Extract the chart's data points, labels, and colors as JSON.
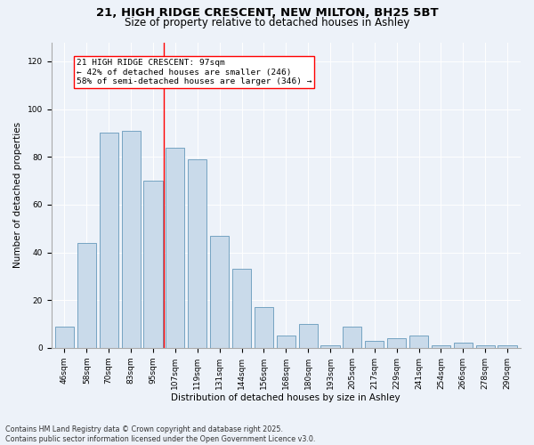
{
  "title1": "21, HIGH RIDGE CRESCENT, NEW MILTON, BH25 5BT",
  "title2": "Size of property relative to detached houses in Ashley",
  "xlabel": "Distribution of detached houses by size in Ashley",
  "ylabel": "Number of detached properties",
  "bar_labels": [
    "46sqm",
    "58sqm",
    "70sqm",
    "83sqm",
    "95sqm",
    "107sqm",
    "119sqm",
    "131sqm",
    "144sqm",
    "156sqm",
    "168sqm",
    "180sqm",
    "193sqm",
    "205sqm",
    "217sqm",
    "229sqm",
    "241sqm",
    "254sqm",
    "266sqm",
    "278sqm",
    "290sqm"
  ],
  "bar_values": [
    9,
    44,
    90,
    91,
    70,
    84,
    79,
    47,
    33,
    17,
    5,
    10,
    1,
    9,
    3,
    4,
    5,
    1,
    2,
    1,
    1
  ],
  "bar_color": "#c9daea",
  "bar_edgecolor": "#6699bb",
  "background_color": "#edf2f9",
  "vline_x": 4.5,
  "vline_color": "red",
  "annotation_title": "21 HIGH RIDGE CRESCENT: 97sqm",
  "annotation_line1": "← 42% of detached houses are smaller (246)",
  "annotation_line2": "58% of semi-detached houses are larger (346) →",
  "ylim": [
    0,
    128
  ],
  "yticks": [
    0,
    20,
    40,
    60,
    80,
    100,
    120
  ],
  "footnote1": "Contains HM Land Registry data © Crown copyright and database right 2025.",
  "footnote2": "Contains public sector information licensed under the Open Government Licence v3.0.",
  "title_fontsize": 9.5,
  "subtitle_fontsize": 8.5,
  "axis_label_fontsize": 7.5,
  "tick_fontsize": 6.5,
  "annotation_fontsize": 6.8,
  "footnote_fontsize": 5.8
}
